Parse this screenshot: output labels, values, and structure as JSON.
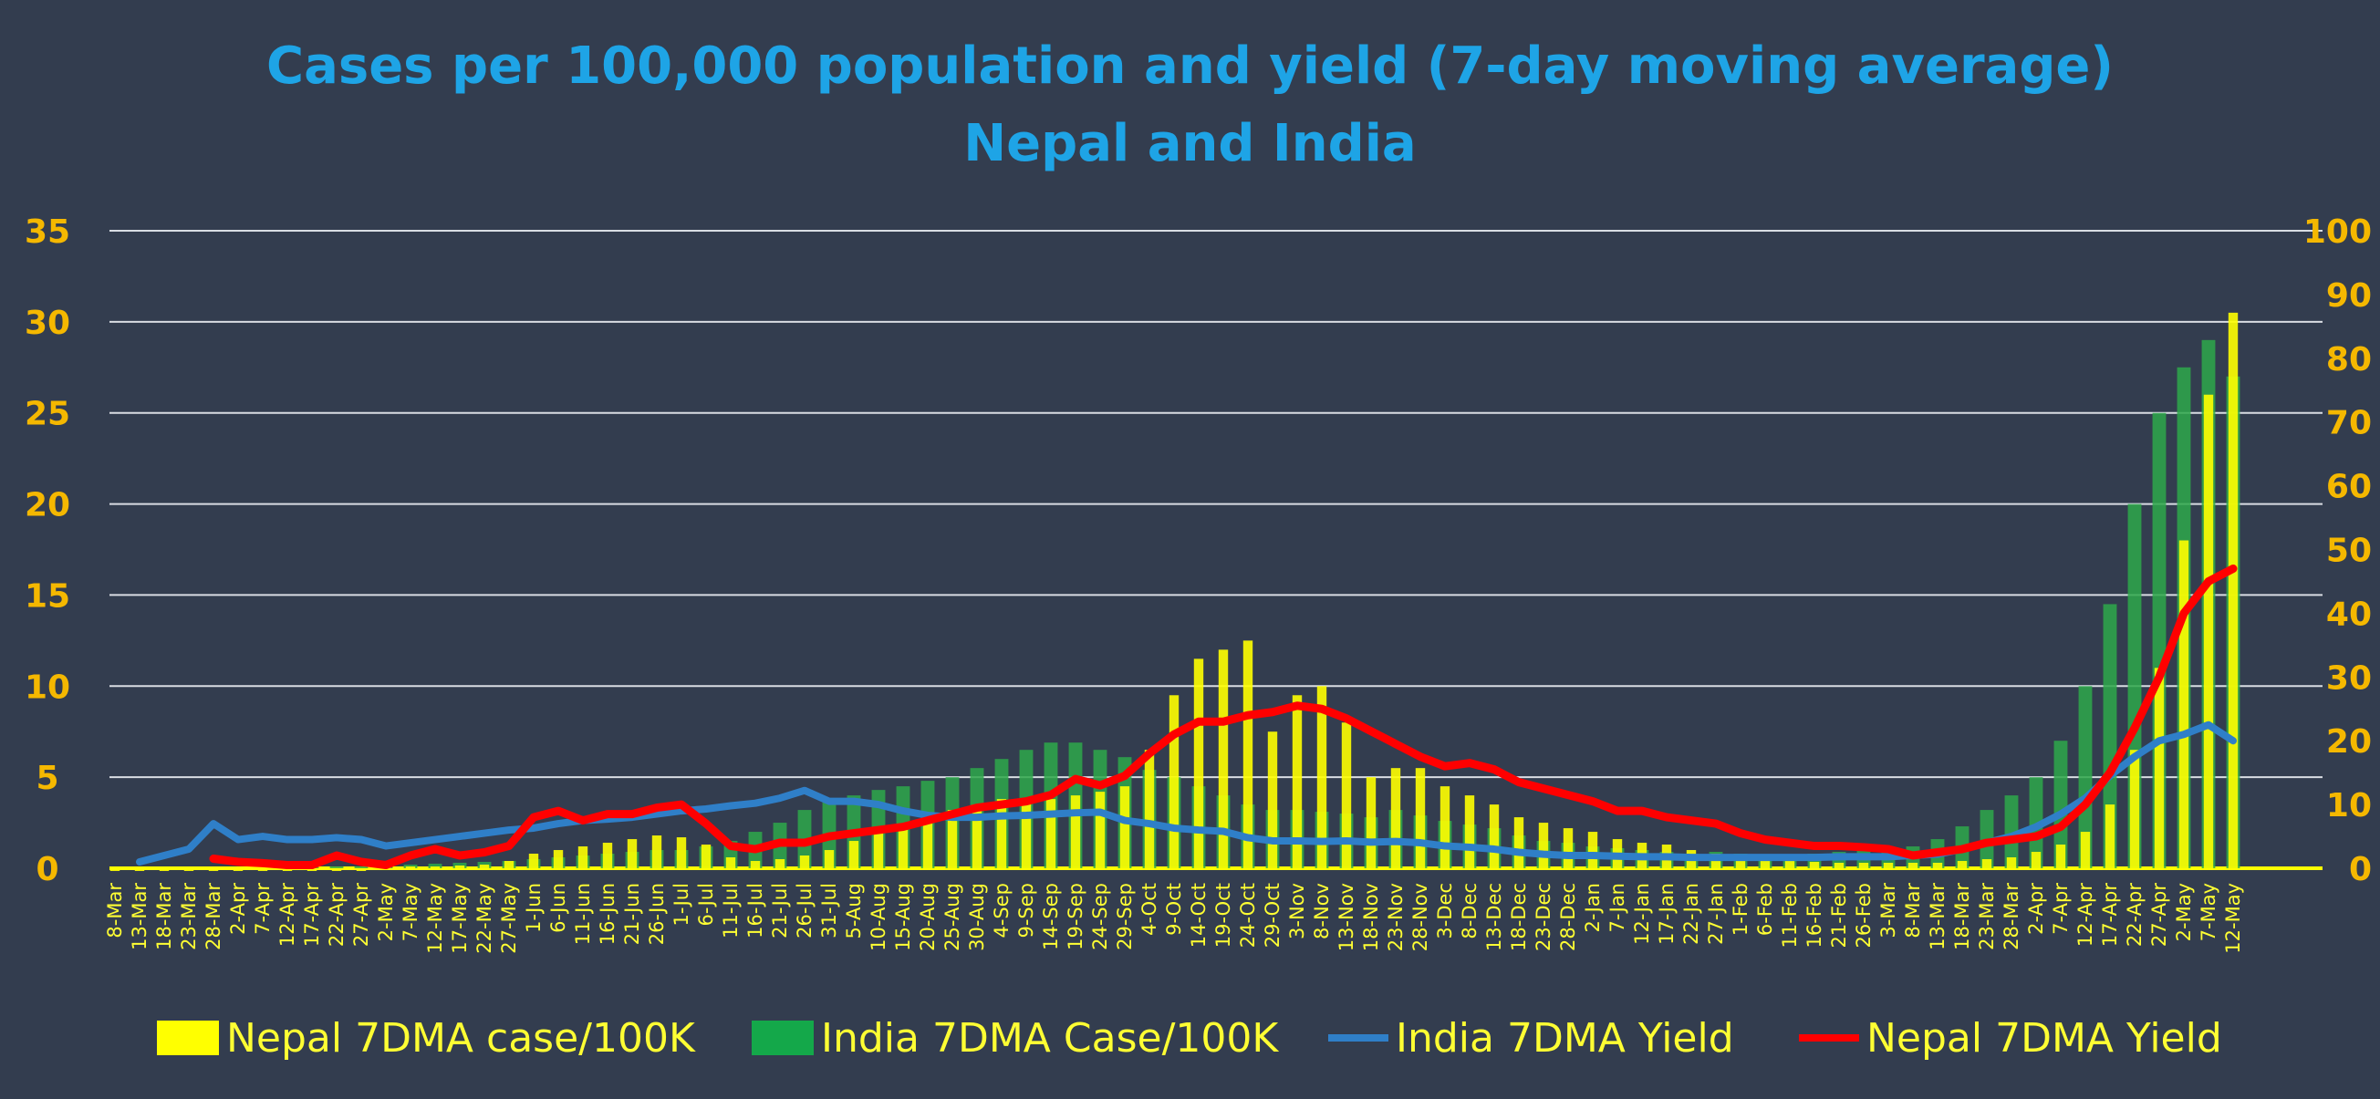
{
  "chart_data": {
    "type": "bar+line",
    "title": "Cases per 100,000 population and yield (7-day moving average)",
    "subtitle": "Nepal and India",
    "colors": {
      "nepal_cases": "#ffff00",
      "india_cases": "#2ea84a",
      "india_yield": "#2f7fc8",
      "nepal_yield": "#ff0000",
      "title": "#1ea4e6",
      "ticks": "#f5b800",
      "xlabels": "#ffff33"
    },
    "left_axis": {
      "ylim": [
        0,
        35
      ],
      "ticks": [
        "0",
        "5",
        "10",
        "15",
        "20",
        "25",
        "30",
        "35"
      ]
    },
    "right_axis": {
      "ylim": [
        0,
        100
      ],
      "ticks": [
        "0",
        "10",
        "20",
        "30",
        "40",
        "50",
        "60",
        "70",
        "80",
        "90",
        "100"
      ]
    },
    "grid": true,
    "legend_position": "bottom",
    "categories": [
      "8-Mar",
      "13-Mar",
      "18-Mar",
      "23-Mar",
      "28-Mar",
      "2-Apr",
      "7-Apr",
      "12-Apr",
      "17-Apr",
      "22-Apr",
      "27-Apr",
      "2-May",
      "7-May",
      "12-May",
      "17-May",
      "22-May",
      "27-May",
      "1-Jun",
      "6-Jun",
      "11-Jun",
      "16-Jun",
      "21-Jun",
      "26-Jun",
      "1-Jul",
      "6-Jul",
      "11-Jul",
      "16-Jul",
      "21-Jul",
      "26-Jul",
      "31-Jul",
      "5-Aug",
      "10-Aug",
      "15-Aug",
      "20-Aug",
      "25-Aug",
      "30-Aug",
      "4-Sep",
      "9-Sep",
      "14-Sep",
      "19-Sep",
      "24-Sep",
      "29-Sep",
      "4-Oct",
      "9-Oct",
      "14-Oct",
      "19-Oct",
      "24-Oct",
      "29-Oct",
      "3-Nov",
      "8-Nov",
      "13-Nov",
      "18-Nov",
      "23-Nov",
      "28-Nov",
      "3-Dec",
      "8-Dec",
      "13-Dec",
      "18-Dec",
      "23-Dec",
      "28-Dec",
      "2-Jan",
      "7-Jan",
      "12-Jan",
      "17-Jan",
      "22-Jan",
      "27-Jan",
      "1-Feb",
      "6-Feb",
      "11-Feb",
      "16-Feb",
      "21-Feb",
      "26-Feb",
      "3-Mar",
      "8-Mar",
      "13-Mar",
      "18-Mar",
      "23-Mar",
      "28-Mar",
      "2-Apr",
      "7-Apr",
      "12-Apr",
      "17-Apr",
      "22-Apr",
      "27-Apr",
      "2-May",
      "7-May",
      "12-May"
    ],
    "series": [
      {
        "name": "Nepal 7DMA case/100K",
        "type": "bar",
        "axis": "left",
        "values": [
          0,
          0,
          0,
          0,
          0,
          0,
          0,
          0,
          0,
          0,
          0,
          0.05,
          0.1,
          0.1,
          0.15,
          0.2,
          0.4,
          0.8,
          1.0,
          1.2,
          1.4,
          1.6,
          1.8,
          1.7,
          1.3,
          0.6,
          0.4,
          0.5,
          0.7,
          1.0,
          1.5,
          2.0,
          2.4,
          2.8,
          3.2,
          3.5,
          3.8,
          3.6,
          3.8,
          4.0,
          4.2,
          4.5,
          6.5,
          9.5,
          11.5,
          12.0,
          12.5,
          7.5,
          9.5,
          10.0,
          8.0,
          5.0,
          5.5,
          5.5,
          4.5,
          4.0,
          3.5,
          2.8,
          2.5,
          2.2,
          2.0,
          1.6,
          1.4,
          1.3,
          1.0,
          0.8,
          0.6,
          0.5,
          0.4,
          0.35,
          0.3,
          0.3,
          0.3,
          0.3,
          0.3,
          0.4,
          0.5,
          0.6,
          0.9,
          1.3,
          2.0,
          3.5,
          6.5,
          11.0,
          18.0,
          26.0,
          30.5
        ]
      },
      {
        "name": "India 7DMA Case/100K",
        "type": "bar",
        "axis": "left",
        "values": [
          0,
          0,
          0,
          0,
          0,
          0,
          0,
          0.05,
          0.05,
          0.1,
          0.1,
          0.15,
          0.2,
          0.25,
          0.3,
          0.35,
          0.4,
          0.5,
          0.6,
          0.7,
          0.8,
          0.9,
          1.0,
          1.0,
          1.2,
          1.5,
          2.0,
          2.5,
          3.2,
          3.7,
          4.0,
          4.3,
          4.5,
          4.8,
          5.0,
          5.5,
          6.0,
          6.5,
          6.9,
          6.9,
          6.5,
          6.1,
          5.4,
          5.0,
          4.5,
          4.0,
          3.5,
          3.2,
          3.2,
          3.1,
          3.0,
          2.8,
          3.2,
          2.9,
          2.6,
          2.4,
          2.2,
          1.8,
          1.5,
          1.4,
          1.2,
          1.1,
          1.0,
          0.9,
          0.8,
          0.9,
          0.8,
          0.7,
          0.7,
          0.8,
          0.9,
          1.0,
          1.1,
          1.2,
          1.6,
          2.3,
          3.2,
          4.0,
          5.0,
          7.0,
          10.0,
          14.5,
          20.0,
          25.0,
          27.5,
          29.0,
          27.0
        ]
      },
      {
        "name": "India 7DMA Yield",
        "type": "line",
        "axis": "right",
        "values": [
          null,
          1,
          2,
          3,
          7,
          4.5,
          5,
          4.5,
          4.5,
          4.8,
          4.5,
          3.5,
          4,
          4.5,
          5,
          5.5,
          6,
          6.3,
          7,
          7.5,
          7.7,
          8,
          8.5,
          9,
          9.3,
          9.8,
          10.2,
          11,
          12.2,
          10.5,
          10.5,
          10,
          9,
          8.3,
          8,
          8,
          8.2,
          8.3,
          8.5,
          8.7,
          8.8,
          7.5,
          7,
          6.3,
          6,
          5.8,
          4.8,
          4.3,
          4.3,
          4.2,
          4.3,
          4.1,
          4.2,
          4,
          3.5,
          3.3,
          3,
          2.5,
          2.2,
          2,
          2,
          1.9,
          1.8,
          1.8,
          1.7,
          1.7,
          1.7,
          1.7,
          1.7,
          1.7,
          1.8,
          1.8,
          1.8,
          2,
          2.2,
          3,
          4,
          5,
          6.5,
          8.5,
          11,
          14.5,
          17.5,
          20,
          21,
          22.5,
          20
        ]
      },
      {
        "name": "Nepal 7DMA Yield",
        "type": "line",
        "axis": "right",
        "values": [
          null,
          null,
          null,
          null,
          1.5,
          1,
          0.8,
          0.5,
          0.5,
          2,
          1,
          0.5,
          2,
          3,
          2,
          2.5,
          3.5,
          8,
          9,
          7.5,
          8.5,
          8.5,
          9.5,
          10,
          7,
          3.5,
          3,
          4,
          4,
          5,
          5.5,
          6,
          6.5,
          7.5,
          8.5,
          9.5,
          10,
          10.5,
          11.5,
          14,
          13,
          14.5,
          18,
          21,
          23,
          23,
          24,
          24.5,
          25.5,
          25,
          23.5,
          21.5,
          19.5,
          17.5,
          16,
          16.5,
          15.5,
          13.5,
          12.5,
          11.5,
          10.5,
          9,
          9,
          8,
          7.5,
          7,
          5.5,
          4.5,
          4,
          3.5,
          3.5,
          3.3,
          3,
          2,
          2.5,
          3,
          4,
          4.5,
          5,
          6.5,
          10,
          15,
          22,
          30,
          40,
          45,
          47
        ]
      }
    ]
  }
}
